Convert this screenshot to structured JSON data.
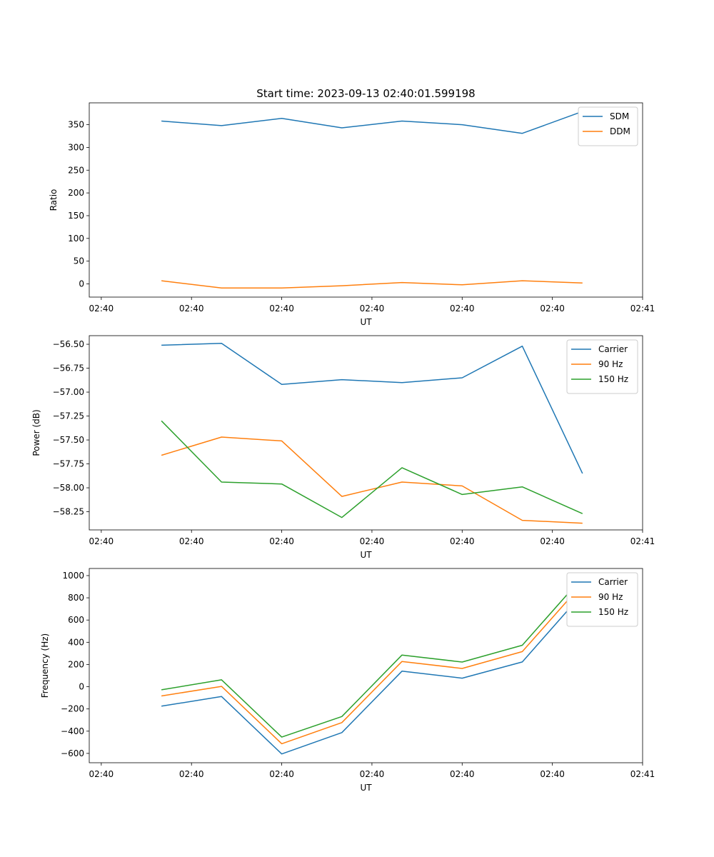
{
  "figure_title": "Start time: 2023-09-13 02:40:01.599198",
  "chart_data": [
    {
      "type": "line",
      "title": "Start time: 2023-09-13 02:40:01.599198",
      "xlabel": "UT",
      "ylabel": "Ratio",
      "x": [
        1,
        2,
        3,
        4,
        5,
        6,
        7,
        8
      ],
      "xlim": [
        -0.2,
        9.0
      ],
      "xticks": [
        0,
        1.5,
        3,
        4.5,
        6,
        7.5,
        9
      ],
      "xticklabels": [
        "02:40",
        "02:40",
        "02:40",
        "02:40",
        "02:40",
        "02:40",
        "02:41"
      ],
      "ylim": [
        -29,
        398
      ],
      "yticks": [
        0,
        50,
        100,
        150,
        200,
        250,
        300,
        350
      ],
      "yticklabels": [
        "0",
        "50",
        "100",
        "150",
        "200",
        "250",
        "300",
        "350"
      ],
      "legend": "top-right",
      "series": [
        {
          "name": "SDM",
          "color": "#1f77b4",
          "values": [
            358,
            348,
            364,
            343,
            358,
            350,
            331,
            379
          ]
        },
        {
          "name": "DDM",
          "color": "#ff7f0e",
          "values": [
            7,
            -9,
            -9,
            -4,
            3,
            -2,
            7,
            2
          ]
        }
      ]
    },
    {
      "type": "line",
      "title": "",
      "xlabel": "UT",
      "ylabel": "Power (dB)",
      "x": [
        1,
        2,
        3,
        4,
        5,
        6,
        7,
        8
      ],
      "xlim": [
        -0.2,
        9.0
      ],
      "xticks": [
        0,
        1.5,
        3,
        4.5,
        6,
        7.5,
        9
      ],
      "xticklabels": [
        "02:40",
        "02:40",
        "02:40",
        "02:40",
        "02:40",
        "02:40",
        "02:41"
      ],
      "ylim": [
        -58.44,
        -56.41
      ],
      "yticks": [
        -56.5,
        -56.75,
        -57.0,
        -57.25,
        -57.5,
        -57.75,
        -58.0,
        -58.25
      ],
      "yticklabels": [
        "−56.50",
        "−56.75",
        "−57.00",
        "−57.25",
        "−57.50",
        "−57.75",
        "−58.00",
        "−58.25"
      ],
      "legend": "top-right",
      "series": [
        {
          "name": "Carrier",
          "color": "#1f77b4",
          "values": [
            -56.51,
            -56.49,
            -56.92,
            -56.87,
            -56.9,
            -56.85,
            -56.52,
            -57.85
          ]
        },
        {
          "name": "90 Hz",
          "color": "#ff7f0e",
          "values": [
            -57.66,
            -57.47,
            -57.51,
            -58.09,
            -57.94,
            -57.98,
            -58.34,
            -58.37
          ]
        },
        {
          "name": "150 Hz",
          "color": "#2ca02c",
          "values": [
            -57.3,
            -57.94,
            -57.96,
            -58.31,
            -57.79,
            -58.07,
            -57.99,
            -58.27
          ]
        }
      ]
    },
    {
      "type": "line",
      "title": "",
      "xlabel": "UT",
      "ylabel": "Frequency (Hz)",
      "x": [
        1,
        2,
        3,
        4,
        5,
        6,
        7,
        8
      ],
      "xlim": [
        -0.2,
        9.0
      ],
      "xticks": [
        0,
        1.5,
        3,
        4.5,
        6,
        7.5,
        9
      ],
      "xticklabels": [
        "02:40",
        "02:40",
        "02:40",
        "02:40",
        "02:40",
        "02:40",
        "02:41"
      ],
      "ylim": [
        -684,
        1064
      ],
      "yticks": [
        -600,
        -400,
        -200,
        0,
        200,
        400,
        600,
        800,
        1000
      ],
      "yticklabels": [
        "−600",
        "−400",
        "−200",
        "0",
        "200",
        "400",
        "600",
        "800",
        "1000"
      ],
      "legend": "top-right",
      "series": [
        {
          "name": "Carrier",
          "color": "#1f77b4",
          "values": [
            -175,
            -88,
            -605,
            -413,
            140,
            77,
            223,
            838
          ]
        },
        {
          "name": "90 Hz",
          "color": "#ff7f0e",
          "values": [
            -83,
            3,
            -513,
            -323,
            227,
            164,
            316,
            928
          ]
        },
        {
          "name": "150 Hz",
          "color": "#2ca02c",
          "values": [
            -28,
            62,
            -453,
            -268,
            285,
            222,
            373,
            985
          ]
        }
      ]
    }
  ]
}
